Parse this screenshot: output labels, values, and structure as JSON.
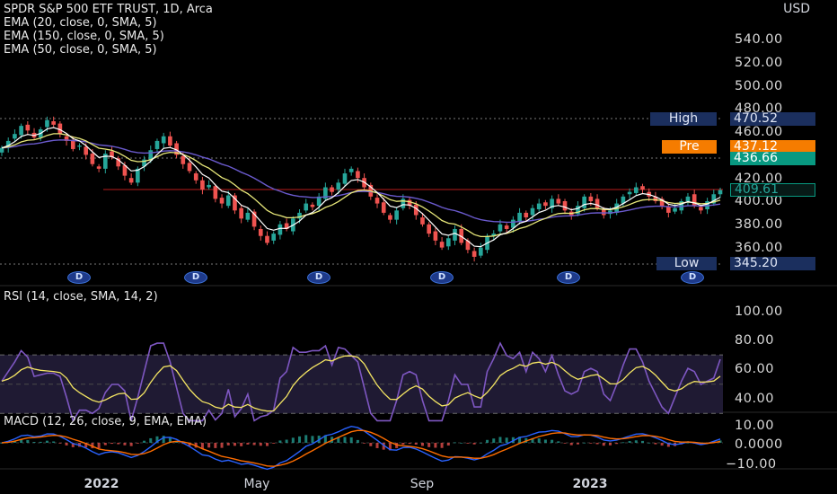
{
  "price_panel": {
    "title": "SPDR S&P 500 ETF TRUST, 1D, Arca",
    "indicators": [
      "EMA (20, close, 0, SMA, 5)",
      "EMA (150, close, 0, SMA, 5)",
      "EMA (50, close, 0, SMA, 5)"
    ],
    "currency": "USD",
    "axis_labels": [
      "540.00",
      "520.00",
      "500.00",
      "480.00",
      "460.00",
      "420.00",
      "400.00",
      "380.00",
      "360.00"
    ],
    "high": {
      "label": "High",
      "value": "470.52"
    },
    "pre": {
      "label": "Pre",
      "value": "437.12"
    },
    "last": {
      "value": "436.66"
    },
    "level": {
      "value": "409.61"
    },
    "low": {
      "label": "Low",
      "value": "345.20"
    },
    "dividend_marker": "D",
    "colors": {
      "up": "#26a69a",
      "down": "#ef5350",
      "ema20": "#ffffff",
      "ema50": "#e8e87a",
      "ema150": "#6a5acd",
      "level": "#b71c1c",
      "pre": "#f57c00",
      "last": "#089981"
    }
  },
  "rsi_panel": {
    "title": "RSI (14, close, SMA, 14, 2)",
    "axis_labels": [
      "100.00",
      "80.00",
      "60.00",
      "40.00"
    ],
    "colors": {
      "rsi": "#7e57c2",
      "sma": "#f5e663",
      "band": "#1f1a33"
    }
  },
  "macd_panel": {
    "title": "MACD (12, 26, close, 9, EMA, EMA)",
    "axis_labels": [
      "10.00",
      "0.0000",
      "−10.00"
    ],
    "colors": {
      "macd": "#2962ff",
      "signal": "#ff6d00",
      "hist_up": "#26a69a",
      "hist_down": "#ef5350"
    }
  },
  "time_axis": {
    "labels": [
      {
        "text": "2022",
        "bold": true
      },
      {
        "text": "May",
        "bold": false
      },
      {
        "text": "Sep",
        "bold": false
      },
      {
        "text": "2023",
        "bold": true
      }
    ]
  },
  "chart_data": {
    "type": "candlestick",
    "ylim": [
      340,
      550
    ],
    "series": [
      {
        "name": "close",
        "values": [
          446,
          452,
          458,
          465,
          461,
          455,
          462,
          470,
          466,
          458,
          452,
          445,
          448,
          440,
          432,
          428,
          441,
          438,
          430,
          422,
          416,
          428,
          436,
          444,
          452,
          456,
          448,
          440,
          432,
          426,
          418,
          410,
          414,
          402,
          398,
          405,
          392,
          385,
          390,
          378,
          370,
          364,
          372,
          380,
          376,
          385,
          390,
          398,
          395,
          404,
          412,
          408,
          416,
          424,
          428,
          420,
          412,
          404,
          398,
          390,
          384,
          392,
          402,
          396,
          388,
          380,
          372,
          366,
          360,
          368,
          376,
          364,
          358,
          352,
          360,
          370,
          372,
          380,
          376,
          384,
          390,
          386,
          394,
          398,
          396,
          402,
          398,
          392,
          388,
          396,
          404,
          400,
          394,
          388,
          392,
          398,
          404,
          408,
          412,
          410,
          404,
          400,
          396,
          390,
          394,
          400,
          404,
          396,
          392,
          400,
          406,
          409.61
        ]
      }
    ]
  }
}
